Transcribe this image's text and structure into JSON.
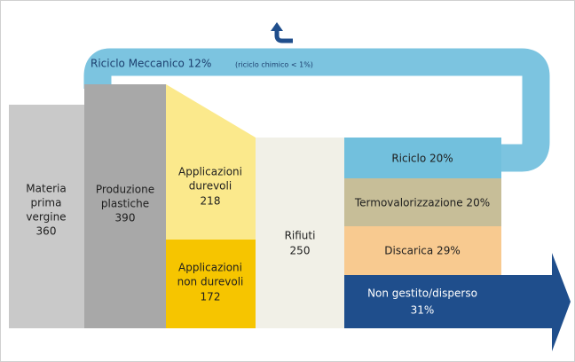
{
  "loop": {
    "label": "Riciclo Meccanico 12%",
    "note": "(riciclo chimico < 1%)"
  },
  "nodes": [
    {
      "label": [
        "Materia",
        "prima",
        "vergine"
      ],
      "value": 360
    },
    {
      "label": [
        "Produzione",
        "plastiche"
      ],
      "value": 390
    },
    {
      "label": [
        "Applicazioni",
        "durevoli"
      ],
      "value": 218
    },
    {
      "label": [
        "Applicazioni",
        "non durevoli"
      ],
      "value": 172
    },
    {
      "label": [
        "Rifiuti"
      ],
      "value": 250
    },
    {
      "label": [
        "Riciclo 20%"
      ]
    },
    {
      "label": [
        "Termovalorizzazione 20%"
      ]
    },
    {
      "label": [
        "Discarica 29%"
      ]
    },
    {
      "label": [
        "Non gestito/disperso",
        "31%"
      ]
    }
  ]
}
